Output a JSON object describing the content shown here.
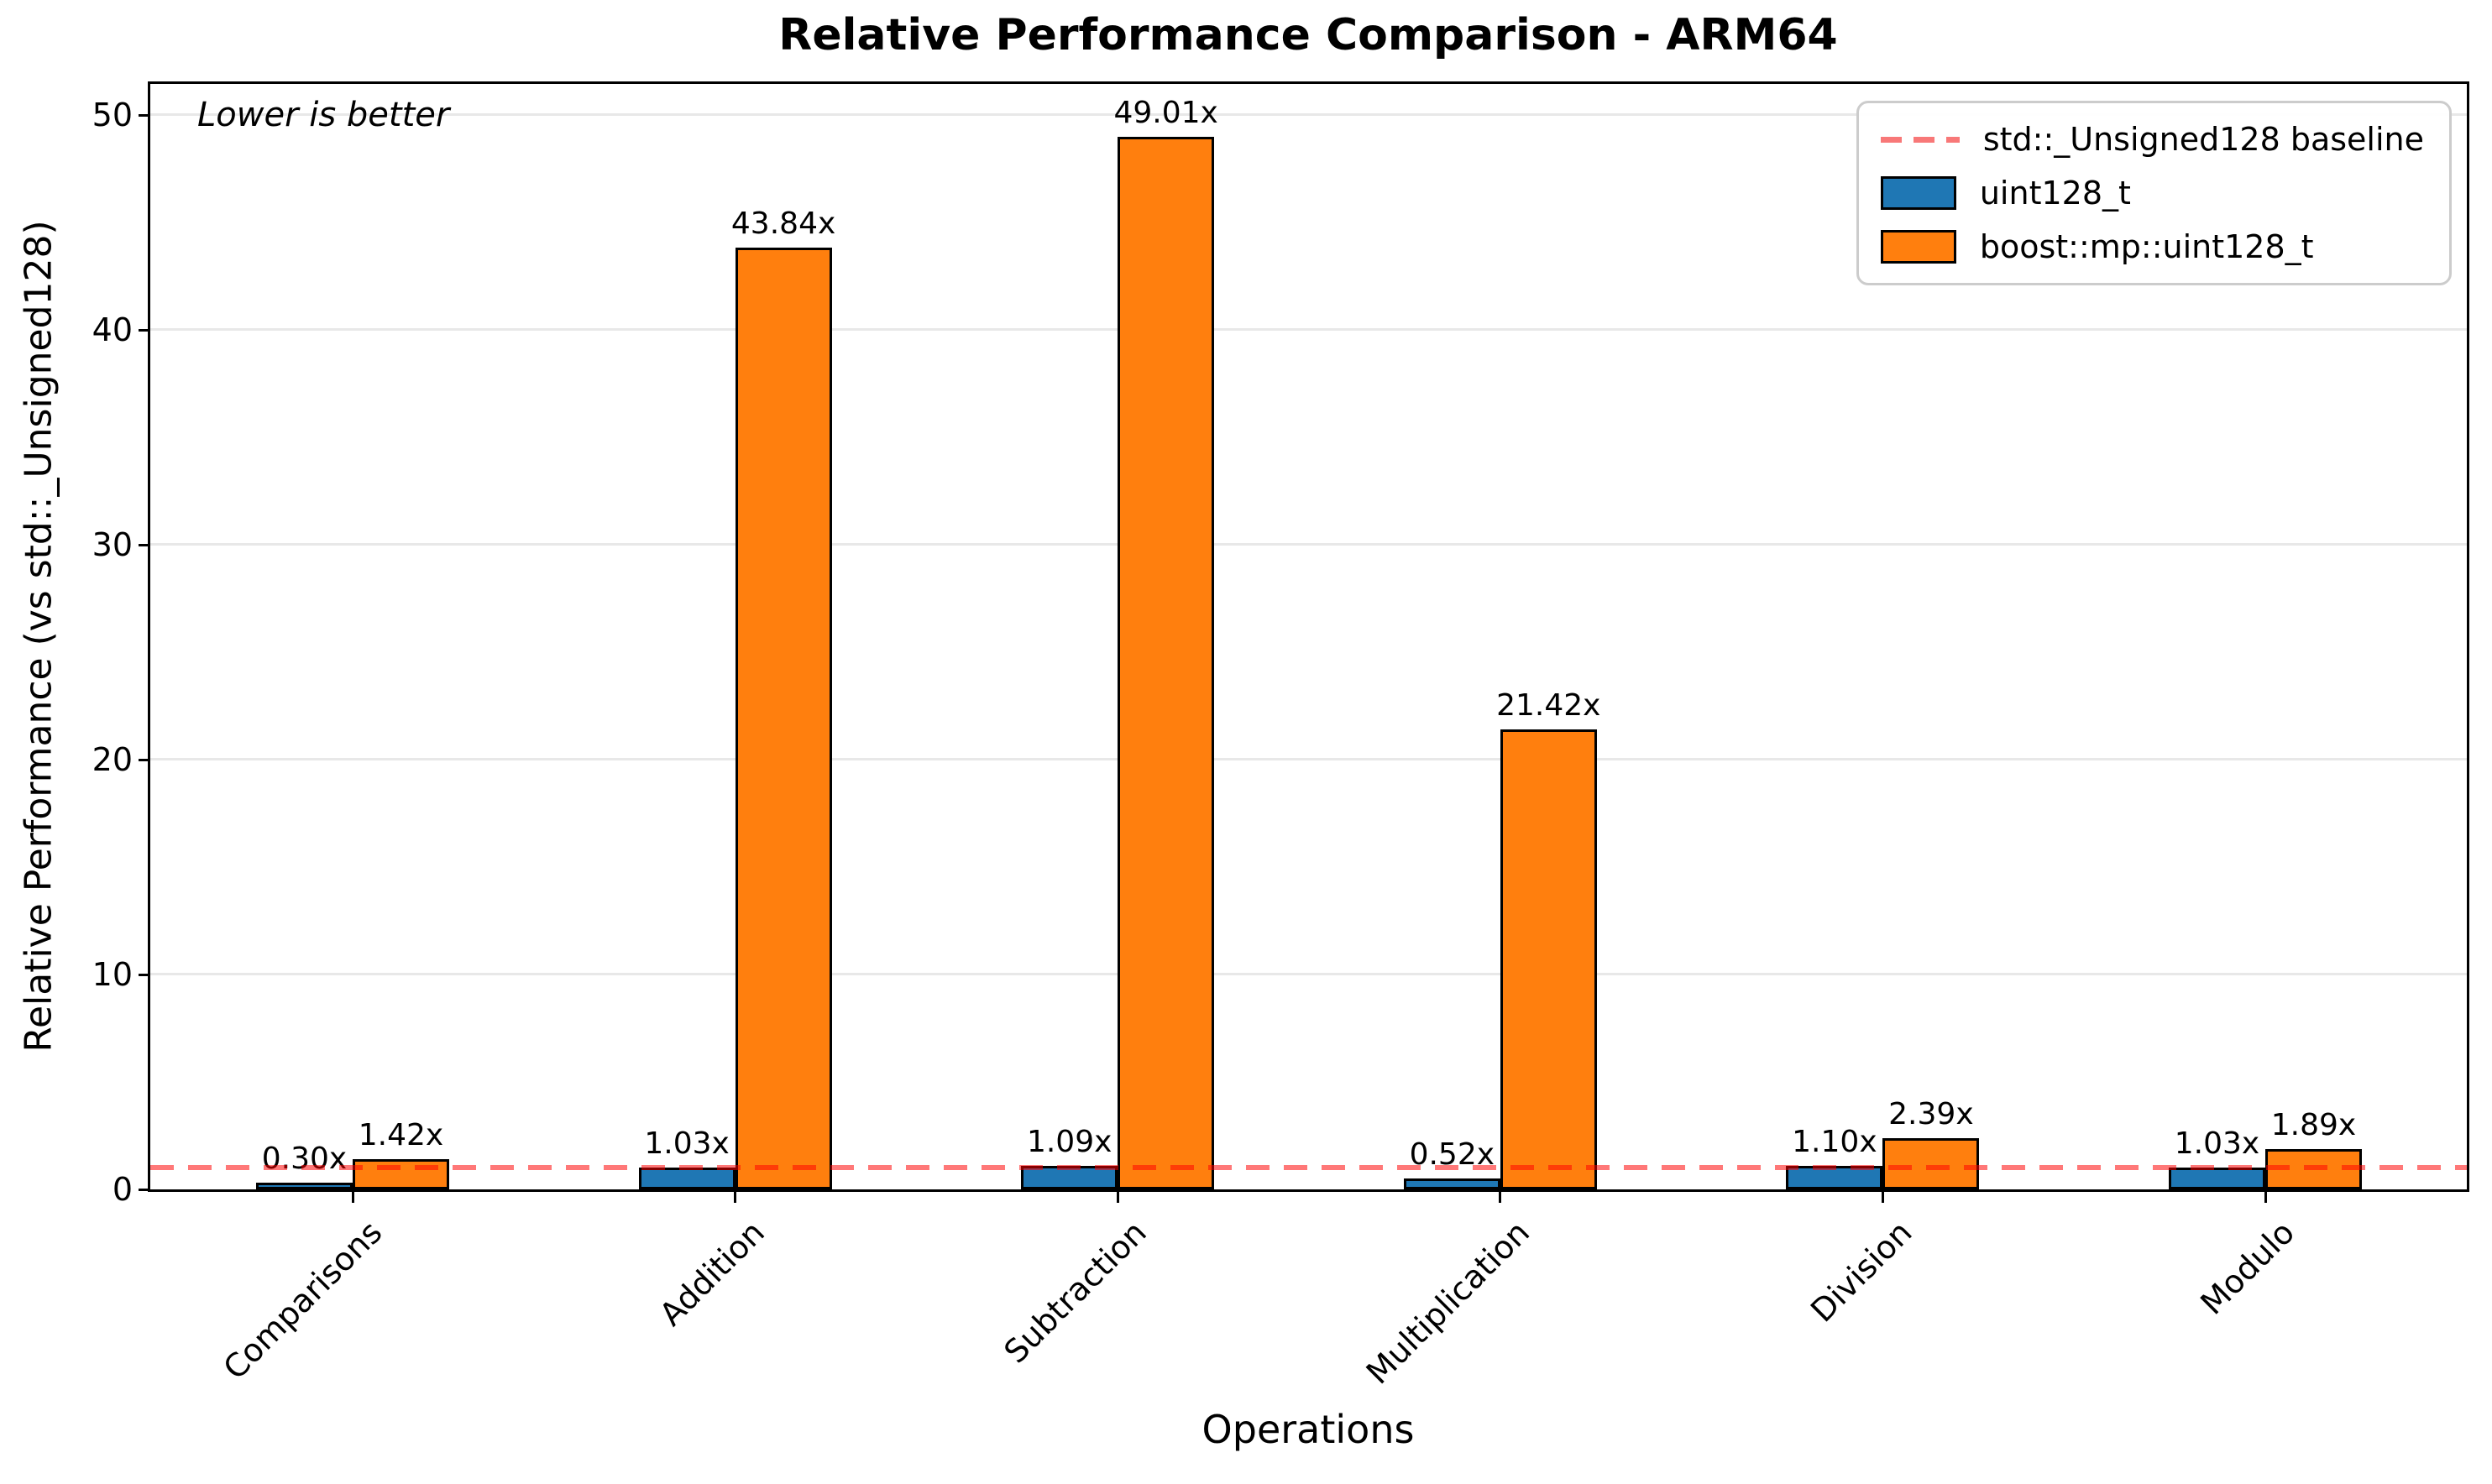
{
  "chart_data": {
    "type": "bar",
    "title": "Relative Performance Comparison - ARM64",
    "note": "Lower is better",
    "xlabel": "Operations",
    "ylabel": "Relative Performance (vs std::_Unsigned128)",
    "categories": [
      "Comparisons",
      "Addition",
      "Subtraction",
      "Multiplication",
      "Division",
      "Modulo"
    ],
    "series": [
      {
        "name": "uint128_t",
        "color": "#1f77b4",
        "values": [
          0.3,
          1.03,
          1.09,
          0.52,
          1.1,
          1.03
        ],
        "labels": [
          "0.30x",
          "1.03x",
          "1.09x",
          "0.52x",
          "1.10x",
          "1.03x"
        ]
      },
      {
        "name": "boost::mp::uint128_t",
        "color": "#ff7f0e",
        "values": [
          1.42,
          43.84,
          49.01,
          21.42,
          2.39,
          1.89
        ],
        "labels": [
          "1.42x",
          "43.84x",
          "49.01x",
          "21.42x",
          "2.39x",
          "1.89x"
        ]
      }
    ],
    "baseline": {
      "value": 1,
      "label": "std::_Unsigned128 baseline",
      "color": "#f87878",
      "line_rgba": "rgba(255,0,0,0.53)"
    },
    "yticks": [
      0,
      10,
      20,
      30,
      40,
      50
    ],
    "ylim": [
      0,
      51.46
    ],
    "grid": true,
    "grid_color": "#e8e8e8",
    "bar_edge_color": "#000000",
    "legend_position": "upper right"
  }
}
